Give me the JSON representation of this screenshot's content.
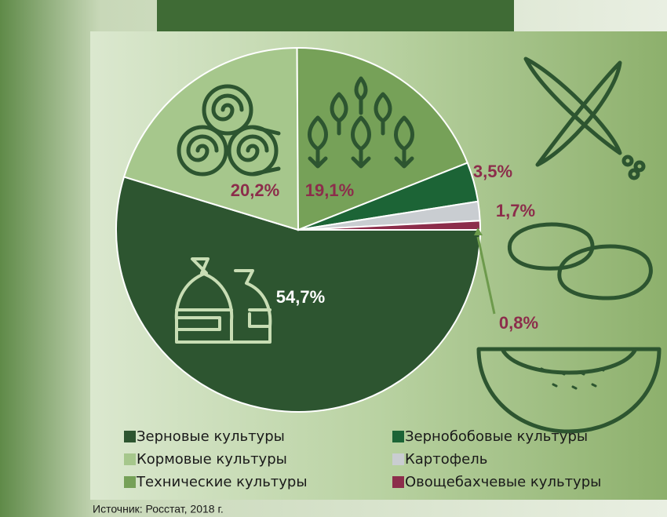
{
  "chart_data": {
    "type": "pie",
    "categories": [
      "Зерновые культуры",
      "Кормовые культуры",
      "Технические культуры",
      "Зернобобовые культуры",
      "Картофель",
      "Овощебахчевые культуры"
    ],
    "values": [
      54.7,
      20.2,
      19.1,
      3.5,
      1.7,
      0.8
    ],
    "value_labels": [
      "54,7%",
      "20,2%",
      "19,1%",
      "3,5%",
      "1,7%",
      "0,8%"
    ],
    "colors": [
      "#2d5530",
      "#a6c78c",
      "#76a158",
      "#1c6436",
      "#c9cdd1",
      "#8c2d4b"
    ],
    "source": "Источник: Росстат, 2018 г."
  }
}
